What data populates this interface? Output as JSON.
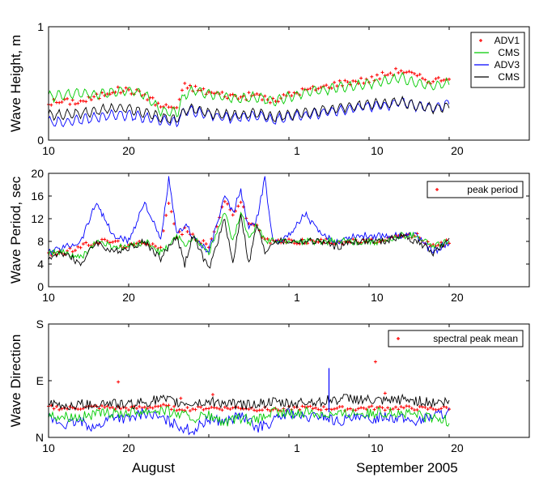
{
  "chart_data": [
    {
      "type": "line",
      "ylabel": "Wave Height, m",
      "ylim": [
        0,
        1
      ],
      "yticks": [
        "0",
        "1"
      ],
      "xlim": [
        10,
        70
      ],
      "xtick_values": [
        10,
        20,
        30,
        40,
        50,
        60,
        70
      ],
      "xtick_labels": [
        "10",
        "20",
        "1",
        "10",
        "20"
      ],
      "xtick_label_days": [
        10,
        20,
        41,
        51,
        61
      ],
      "legend": "top-right",
      "series": [
        {
          "name": "ADV1",
          "style": "markers",
          "color": "#ff0000",
          "x": [
            10,
            12,
            14,
            16,
            18,
            20,
            22,
            24,
            26,
            27,
            28,
            30,
            32,
            34,
            36,
            38,
            40,
            42,
            44,
            46,
            48,
            50,
            52,
            54,
            56,
            58,
            60
          ],
          "y": [
            0.33,
            0.34,
            0.34,
            0.38,
            0.44,
            0.44,
            0.4,
            0.3,
            0.29,
            0.48,
            0.46,
            0.42,
            0.4,
            0.38,
            0.4,
            0.34,
            0.4,
            0.44,
            0.46,
            0.5,
            0.52,
            0.53,
            0.58,
            0.62,
            0.56,
            0.52,
            0.56
          ]
        },
        {
          "name": "CMS",
          "style": "line",
          "color": "#00cc00",
          "x": [
            10,
            12,
            14,
            16,
            18,
            20,
            22,
            24,
            26,
            27,
            28,
            30,
            32,
            34,
            36,
            38,
            40,
            42,
            44,
            46,
            48,
            50,
            52,
            54,
            56,
            58,
            60
          ],
          "y": [
            0.38,
            0.4,
            0.42,
            0.4,
            0.43,
            0.44,
            0.4,
            0.26,
            0.24,
            0.4,
            0.44,
            0.4,
            0.38,
            0.36,
            0.38,
            0.34,
            0.38,
            0.42,
            0.44,
            0.46,
            0.48,
            0.5,
            0.52,
            0.55,
            0.5,
            0.48,
            0.5
          ]
        },
        {
          "name": "ADV3",
          "style": "line",
          "color": "#0000ff",
          "x": [
            10,
            12,
            14,
            16,
            18,
            20,
            22,
            24,
            26,
            27,
            28,
            30,
            32,
            34,
            36,
            38,
            40,
            42,
            44,
            46,
            48,
            50,
            52,
            54,
            56,
            58,
            60
          ],
          "y": [
            0.16,
            0.16,
            0.18,
            0.2,
            0.22,
            0.22,
            0.2,
            0.18,
            0.16,
            0.26,
            0.26,
            0.22,
            0.2,
            0.2,
            0.22,
            0.18,
            0.2,
            0.22,
            0.24,
            0.26,
            0.28,
            0.3,
            0.3,
            0.34,
            0.3,
            0.28,
            0.32
          ]
        },
        {
          "name": "CMS",
          "style": "line",
          "color": "#000000",
          "x": [
            10,
            12,
            14,
            16,
            18,
            20,
            22,
            24,
            26,
            27,
            28,
            30,
            32,
            34,
            36,
            38,
            40,
            42,
            44,
            46,
            48,
            50,
            52,
            54,
            56,
            58,
            60
          ],
          "y": [
            0.22,
            0.22,
            0.24,
            0.26,
            0.28,
            0.28,
            0.24,
            0.2,
            0.18,
            0.26,
            0.28,
            0.24,
            0.22,
            0.22,
            0.24,
            0.2,
            0.22,
            0.24,
            0.26,
            0.28,
            0.3,
            0.32,
            0.32,
            0.34,
            0.3,
            0.28,
            0.3
          ]
        }
      ]
    },
    {
      "type": "line",
      "ylabel": "Wave Period, sec",
      "ylim": [
        0,
        20
      ],
      "yticks": [
        "0",
        "4",
        "8",
        "12",
        "16",
        "20"
      ],
      "xlim": [
        10,
        70
      ],
      "xtick_values": [
        10,
        20,
        30,
        40,
        50,
        60,
        70
      ],
      "xtick_labels": [
        "10",
        "20",
        "1",
        "10",
        "20"
      ],
      "xtick_label_days": [
        10,
        20,
        41,
        51,
        61
      ],
      "legend": "top-right",
      "series": [
        {
          "name": "peak period",
          "style": "markers",
          "color": "#ff0000",
          "x": [
            10,
            12,
            14,
            16,
            18,
            20,
            22,
            24,
            25,
            26,
            27,
            28,
            30,
            32,
            33,
            34,
            35,
            36,
            37,
            38,
            40,
            42,
            44,
            46,
            48,
            50,
            52,
            54,
            56,
            58,
            60
          ],
          "y": [
            6,
            6,
            7,
            8,
            8,
            7,
            8,
            7,
            15,
            9,
            10,
            9,
            7,
            15,
            13,
            15,
            11,
            11,
            8,
            8,
            8,
            8,
            8,
            8,
            8,
            8,
            8,
            9,
            9,
            7,
            8
          ]
        },
        {
          "name": "",
          "style": "line",
          "color": "#0000ff",
          "x": [
            10,
            12,
            14,
            16,
            18,
            20,
            22,
            24,
            25,
            26,
            27,
            28,
            30,
            32,
            33,
            34,
            35,
            36,
            37,
            38,
            40,
            42,
            44,
            46,
            48,
            50,
            52,
            54,
            56,
            58,
            60
          ],
          "y": [
            6,
            7,
            8,
            15,
            9,
            8,
            15,
            8,
            19,
            9,
            11,
            9,
            6,
            16,
            13,
            17,
            10,
            12,
            19,
            8,
            9,
            13,
            9,
            8,
            9,
            9,
            9,
            9,
            9,
            6,
            8
          ]
        },
        {
          "name": "",
          "style": "line",
          "color": "#00cc00",
          "x": [
            10,
            12,
            14,
            16,
            18,
            20,
            22,
            24,
            25,
            26,
            27,
            28,
            30,
            32,
            33,
            34,
            35,
            36,
            37,
            38,
            40,
            42,
            44,
            46,
            48,
            50,
            52,
            54,
            56,
            58,
            60
          ],
          "y": [
            6,
            6,
            5,
            8,
            7,
            7,
            8,
            6,
            7,
            9,
            7,
            9,
            6,
            13,
            8,
            13,
            9,
            11,
            8,
            8,
            8,
            8,
            8,
            8,
            8,
            8,
            8,
            9,
            9,
            7,
            8
          ]
        },
        {
          "name": "",
          "style": "line",
          "color": "#000000",
          "x": [
            10,
            12,
            14,
            16,
            18,
            20,
            22,
            24,
            25,
            26,
            27,
            28,
            30,
            32,
            33,
            34,
            35,
            36,
            37,
            38,
            40,
            42,
            44,
            46,
            48,
            50,
            52,
            54,
            56,
            58,
            60
          ],
          "y": [
            5,
            6,
            4,
            8,
            6,
            7,
            8,
            5,
            7,
            9,
            4,
            9,
            3,
            12,
            4,
            13,
            4,
            11,
            6,
            8,
            8,
            8,
            8,
            7,
            8,
            8,
            8,
            9,
            8,
            6,
            8
          ]
        }
      ]
    },
    {
      "type": "line",
      "ylabel": "Wave Direction",
      "ylim": [
        0,
        180
      ],
      "yticks": [
        "N",
        "E",
        "S"
      ],
      "ytick_values": [
        0,
        90,
        180
      ],
      "xlim": [
        10,
        70
      ],
      "xtick_values": [
        10,
        20,
        30,
        40,
        50,
        60,
        70
      ],
      "xtick_labels": [
        "10",
        "20",
        "1",
        "10",
        "20"
      ],
      "xtick_label_days": [
        10,
        20,
        41,
        51,
        61
      ],
      "legend": "top-right",
      "series": [
        {
          "name": "spectral peak mean",
          "style": "markers",
          "color": "#ff0000",
          "x": [
            10,
            12,
            14,
            16,
            18,
            20,
            22,
            24,
            26,
            28,
            30,
            32,
            34,
            36,
            38,
            40,
            42,
            44,
            46,
            48,
            50,
            52,
            54,
            56,
            58,
            60
          ],
          "y": [
            48,
            46,
            47,
            48,
            47,
            46,
            47,
            50,
            46,
            45,
            47,
            46,
            47,
            45,
            44,
            46,
            47,
            46,
            46,
            45,
            47,
            46,
            47,
            46,
            45,
            47
          ]
        },
        {
          "name": "",
          "style": "line",
          "color": "#0000ff",
          "x": [
            10,
            12,
            14,
            16,
            18,
            20,
            22,
            24,
            26,
            28,
            30,
            32,
            34,
            36,
            38,
            40,
            42,
            44,
            46,
            48,
            50,
            52,
            54,
            56,
            58,
            60
          ],
          "y": [
            30,
            20,
            25,
            15,
            35,
            28,
            40,
            30,
            20,
            10,
            30,
            25,
            35,
            15,
            25,
            40,
            30,
            35,
            25,
            30,
            28,
            35,
            30,
            25,
            35,
            40
          ]
        },
        {
          "name": "",
          "style": "line",
          "color": "#00cc00",
          "x": [
            10,
            12,
            14,
            16,
            18,
            20,
            22,
            24,
            26,
            28,
            30,
            32,
            34,
            36,
            38,
            40,
            42,
            44,
            46,
            48,
            50,
            52,
            54,
            56,
            58,
            60
          ],
          "y": [
            35,
            34,
            33,
            36,
            38,
            40,
            42,
            44,
            38,
            30,
            34,
            22,
            30,
            26,
            40,
            38,
            40,
            38,
            36,
            40,
            38,
            40,
            38,
            36,
            30,
            26
          ]
        },
        {
          "name": "",
          "style": "line",
          "color": "#000000",
          "x": [
            10,
            12,
            14,
            16,
            18,
            20,
            22,
            24,
            26,
            28,
            30,
            32,
            34,
            36,
            38,
            40,
            42,
            44,
            46,
            48,
            50,
            52,
            54,
            56,
            58,
            60
          ],
          "y": [
            52,
            50,
            52,
            54,
            55,
            52,
            56,
            60,
            55,
            54,
            56,
            55,
            52,
            54,
            55,
            53,
            56,
            58,
            60,
            62,
            58,
            56,
            60,
            58,
            55,
            56
          ]
        }
      ],
      "spikes": [
        {
          "x": 18.7,
          "y": 88,
          "color": "#ff0000"
        },
        {
          "x": 26.5,
          "y": 62,
          "color": "#ff0000"
        },
        {
          "x": 30.5,
          "y": 68,
          "color": "#ff0000"
        },
        {
          "x": 50.8,
          "y": 120,
          "color": "#ff0000"
        },
        {
          "x": 52.0,
          "y": 70,
          "color": "#ff0000"
        },
        {
          "x": 45.0,
          "y": 110,
          "color": "#0000ff"
        }
      ]
    }
  ],
  "xaxis_months": {
    "left": "August",
    "right": "September 2005"
  }
}
